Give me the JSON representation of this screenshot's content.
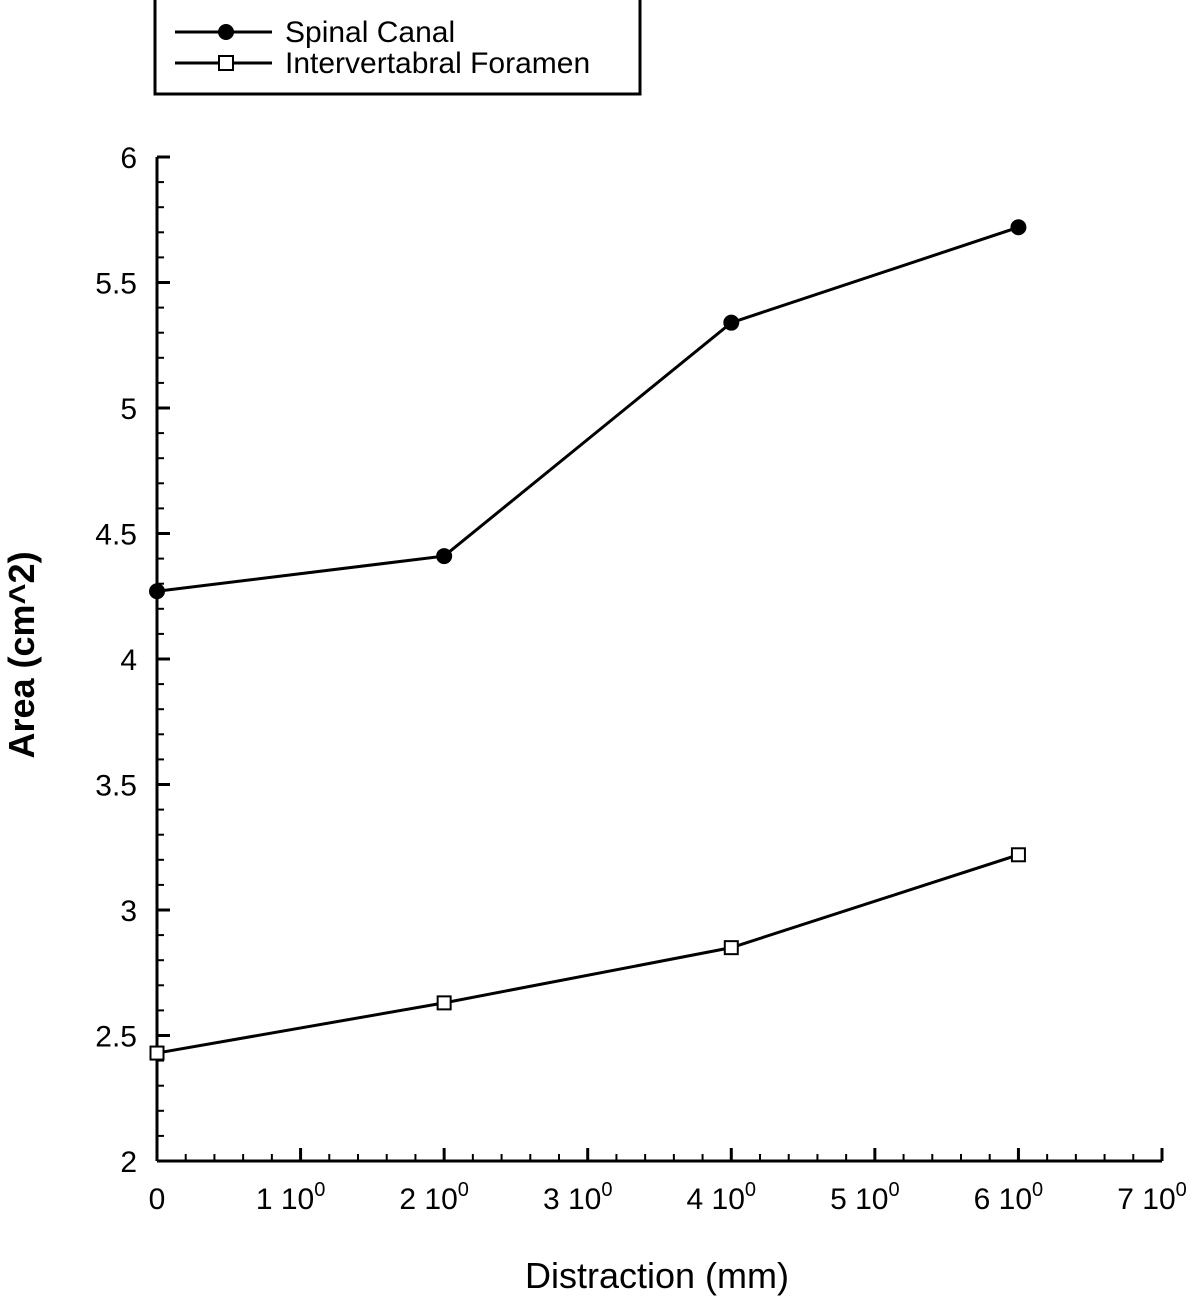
{
  "chart_data": {
    "type": "line",
    "xlabel": "Distraction (mm)",
    "ylabel": "Area (cm^2)",
    "xlim": [
      0,
      7
    ],
    "ylim": [
      2,
      6
    ],
    "x_ticks": [
      {
        "value": 0,
        "mantissa": "0",
        "exp": ""
      },
      {
        "value": 1,
        "mantissa": "1 10",
        "exp": "0"
      },
      {
        "value": 2,
        "mantissa": "2 10",
        "exp": "0"
      },
      {
        "value": 3,
        "mantissa": "3 10",
        "exp": "0"
      },
      {
        "value": 4,
        "mantissa": "4 10",
        "exp": "0"
      },
      {
        "value": 5,
        "mantissa": "5 10",
        "exp": "0"
      },
      {
        "value": 6,
        "mantissa": "6 10",
        "exp": "0"
      },
      {
        "value": 7,
        "mantissa": "7 10",
        "exp": "0"
      }
    ],
    "y_ticks": [
      {
        "value": 2,
        "label": "2"
      },
      {
        "value": 2.5,
        "label": "2.5"
      },
      {
        "value": 3,
        "label": "3"
      },
      {
        "value": 3.5,
        "label": "3.5"
      },
      {
        "value": 4,
        "label": "4"
      },
      {
        "value": 4.5,
        "label": "4.5"
      },
      {
        "value": 5,
        "label": "5"
      },
      {
        "value": 5.5,
        "label": "5.5"
      },
      {
        "value": 6,
        "label": "6"
      }
    ],
    "grid": false,
    "legend_position": "top-left",
    "series": [
      {
        "name": "Spinal Canal",
        "marker": "filled-circle",
        "x": [
          0,
          2,
          4,
          6
        ],
        "y": [
          4.27,
          4.41,
          5.34,
          5.72
        ]
      },
      {
        "name": "Intervertabral Foramen",
        "marker": "open-square",
        "x": [
          0,
          2,
          4,
          6
        ],
        "y": [
          2.43,
          2.63,
          2.85,
          3.22
        ]
      }
    ]
  }
}
